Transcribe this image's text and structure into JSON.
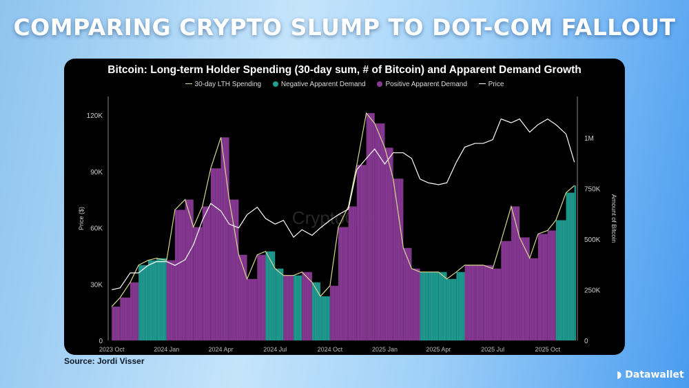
{
  "headline": "COMPARING CRYPTO SLUMP TO DOT-COM FALLOUT",
  "source": "Source: Jordi Visser",
  "logo": "Datawallet",
  "watermark": "CryptoQuant",
  "colors": {
    "negative": "#1f9e93",
    "positive": "#8a3a96",
    "spending_line": "#d8d890",
    "price_line": "#ffffff"
  },
  "chart_data": {
    "type": "bar",
    "title": "Bitcoin: Long-term Holder Spending (30-day sum, # of Bitcoin) and Apparent Demand Growth",
    "legend": [
      "30-day LTH Spending",
      "Negative Apparent Demand",
      "Positive Apparent Demand",
      "Price"
    ],
    "legend_placement": "top",
    "ylabel_left": "Price ($)",
    "ylabel_right": "Amount of Bitcoin",
    "yticks_left": [
      "0",
      "30K",
      "60K",
      "90K",
      "120K"
    ],
    "ylim_left": [
      0,
      130000
    ],
    "yticks_right": [
      "0",
      "250K",
      "500K",
      "750K",
      "1M"
    ],
    "ylim_right": [
      0,
      1205000
    ],
    "xticks": [
      "2023 Oct",
      "2024 Jan",
      "2024 Apr",
      "2024 Jul",
      "2024 Oct",
      "2025 Jan",
      "2025 Apr",
      "2025 Jul",
      "2025 Oct"
    ],
    "xtick_dates": [
      "2023-10-01",
      "2024-01-01",
      "2024-04-01",
      "2024-07-01",
      "2024-10-01",
      "2025-01-01",
      "2025-04-01",
      "2025-07-01",
      "2025-10-01"
    ],
    "xlim": [
      "2023-09-25",
      "2025-11-20"
    ],
    "dates": [
      "2023-10-01",
      "2023-10-15",
      "2023-11-01",
      "2023-11-15",
      "2023-12-01",
      "2023-12-15",
      "2024-01-01",
      "2024-01-15",
      "2024-02-01",
      "2024-02-15",
      "2024-03-01",
      "2024-03-15",
      "2024-04-01",
      "2024-04-15",
      "2024-05-01",
      "2024-05-15",
      "2024-06-01",
      "2024-06-15",
      "2024-07-01",
      "2024-07-15",
      "2024-08-01",
      "2024-08-15",
      "2024-09-01",
      "2024-09-15",
      "2024-10-01",
      "2024-10-15",
      "2024-11-01",
      "2024-11-15",
      "2024-12-01",
      "2024-12-15",
      "2025-01-01",
      "2025-01-15",
      "2025-02-01",
      "2025-02-15",
      "2025-03-01",
      "2025-03-15",
      "2025-04-01",
      "2025-04-15",
      "2025-05-01",
      "2025-05-15",
      "2025-06-01",
      "2025-06-15",
      "2025-07-01",
      "2025-07-15",
      "2025-08-01",
      "2025-08-15",
      "2025-09-01",
      "2025-09-15",
      "2025-10-01",
      "2025-10-15",
      "2025-11-01",
      "2025-11-15"
    ],
    "lth_spending": [
      167000,
      212000,
      287000,
      372000,
      396000,
      406000,
      396000,
      645000,
      696000,
      560000,
      662000,
      850000,
      1003000,
      696000,
      423000,
      304000,
      423000,
      440000,
      355000,
      321000,
      321000,
      338000,
      287000,
      218000,
      270000,
      560000,
      662000,
      867000,
      1123000,
      1072000,
      952000,
      799000,
      457000,
      355000,
      338000,
      338000,
      338000,
      304000,
      338000,
      372000,
      372000,
      372000,
      355000,
      491000,
      662000,
      509000,
      406000,
      526000,
      543000,
      594000,
      730000,
      765000
    ],
    "apparent_demand": [
      "positive",
      "positive",
      "positive",
      "negative",
      "negative",
      "negative",
      "positive",
      "positive",
      "positive",
      "positive",
      "positive",
      "positive",
      "positive",
      "positive",
      "positive",
      "positive",
      "positive",
      "negative",
      "negative",
      "positive",
      "negative",
      "positive",
      "negative",
      "negative",
      "positive",
      "positive",
      "positive",
      "positive",
      "positive",
      "positive",
      "positive",
      "positive",
      "positive",
      "positive",
      "negative",
      "negative",
      "negative",
      "negative",
      "negative",
      "positive",
      "positive",
      "positive",
      "positive",
      "positive",
      "positive",
      "positive",
      "positive",
      "positive",
      "positive",
      "negative",
      "negative",
      "negative"
    ],
    "price": [
      27000,
      28000,
      36000,
      36000,
      40000,
      42000,
      42000,
      40000,
      43000,
      51000,
      64000,
      73000,
      69000,
      62000,
      60000,
      67000,
      71000,
      65000,
      62000,
      64000,
      55000,
      59000,
      56000,
      60000,
      64000,
      67000,
      70000,
      91000,
      97000,
      102000,
      94000,
      100000,
      100000,
      97000,
      86000,
      84000,
      83000,
      84000,
      95000,
      103000,
      105000,
      105000,
      107000,
      118000,
      116000,
      118000,
      111000,
      115000,
      118000,
      115000,
      110000,
      95000
    ]
  }
}
